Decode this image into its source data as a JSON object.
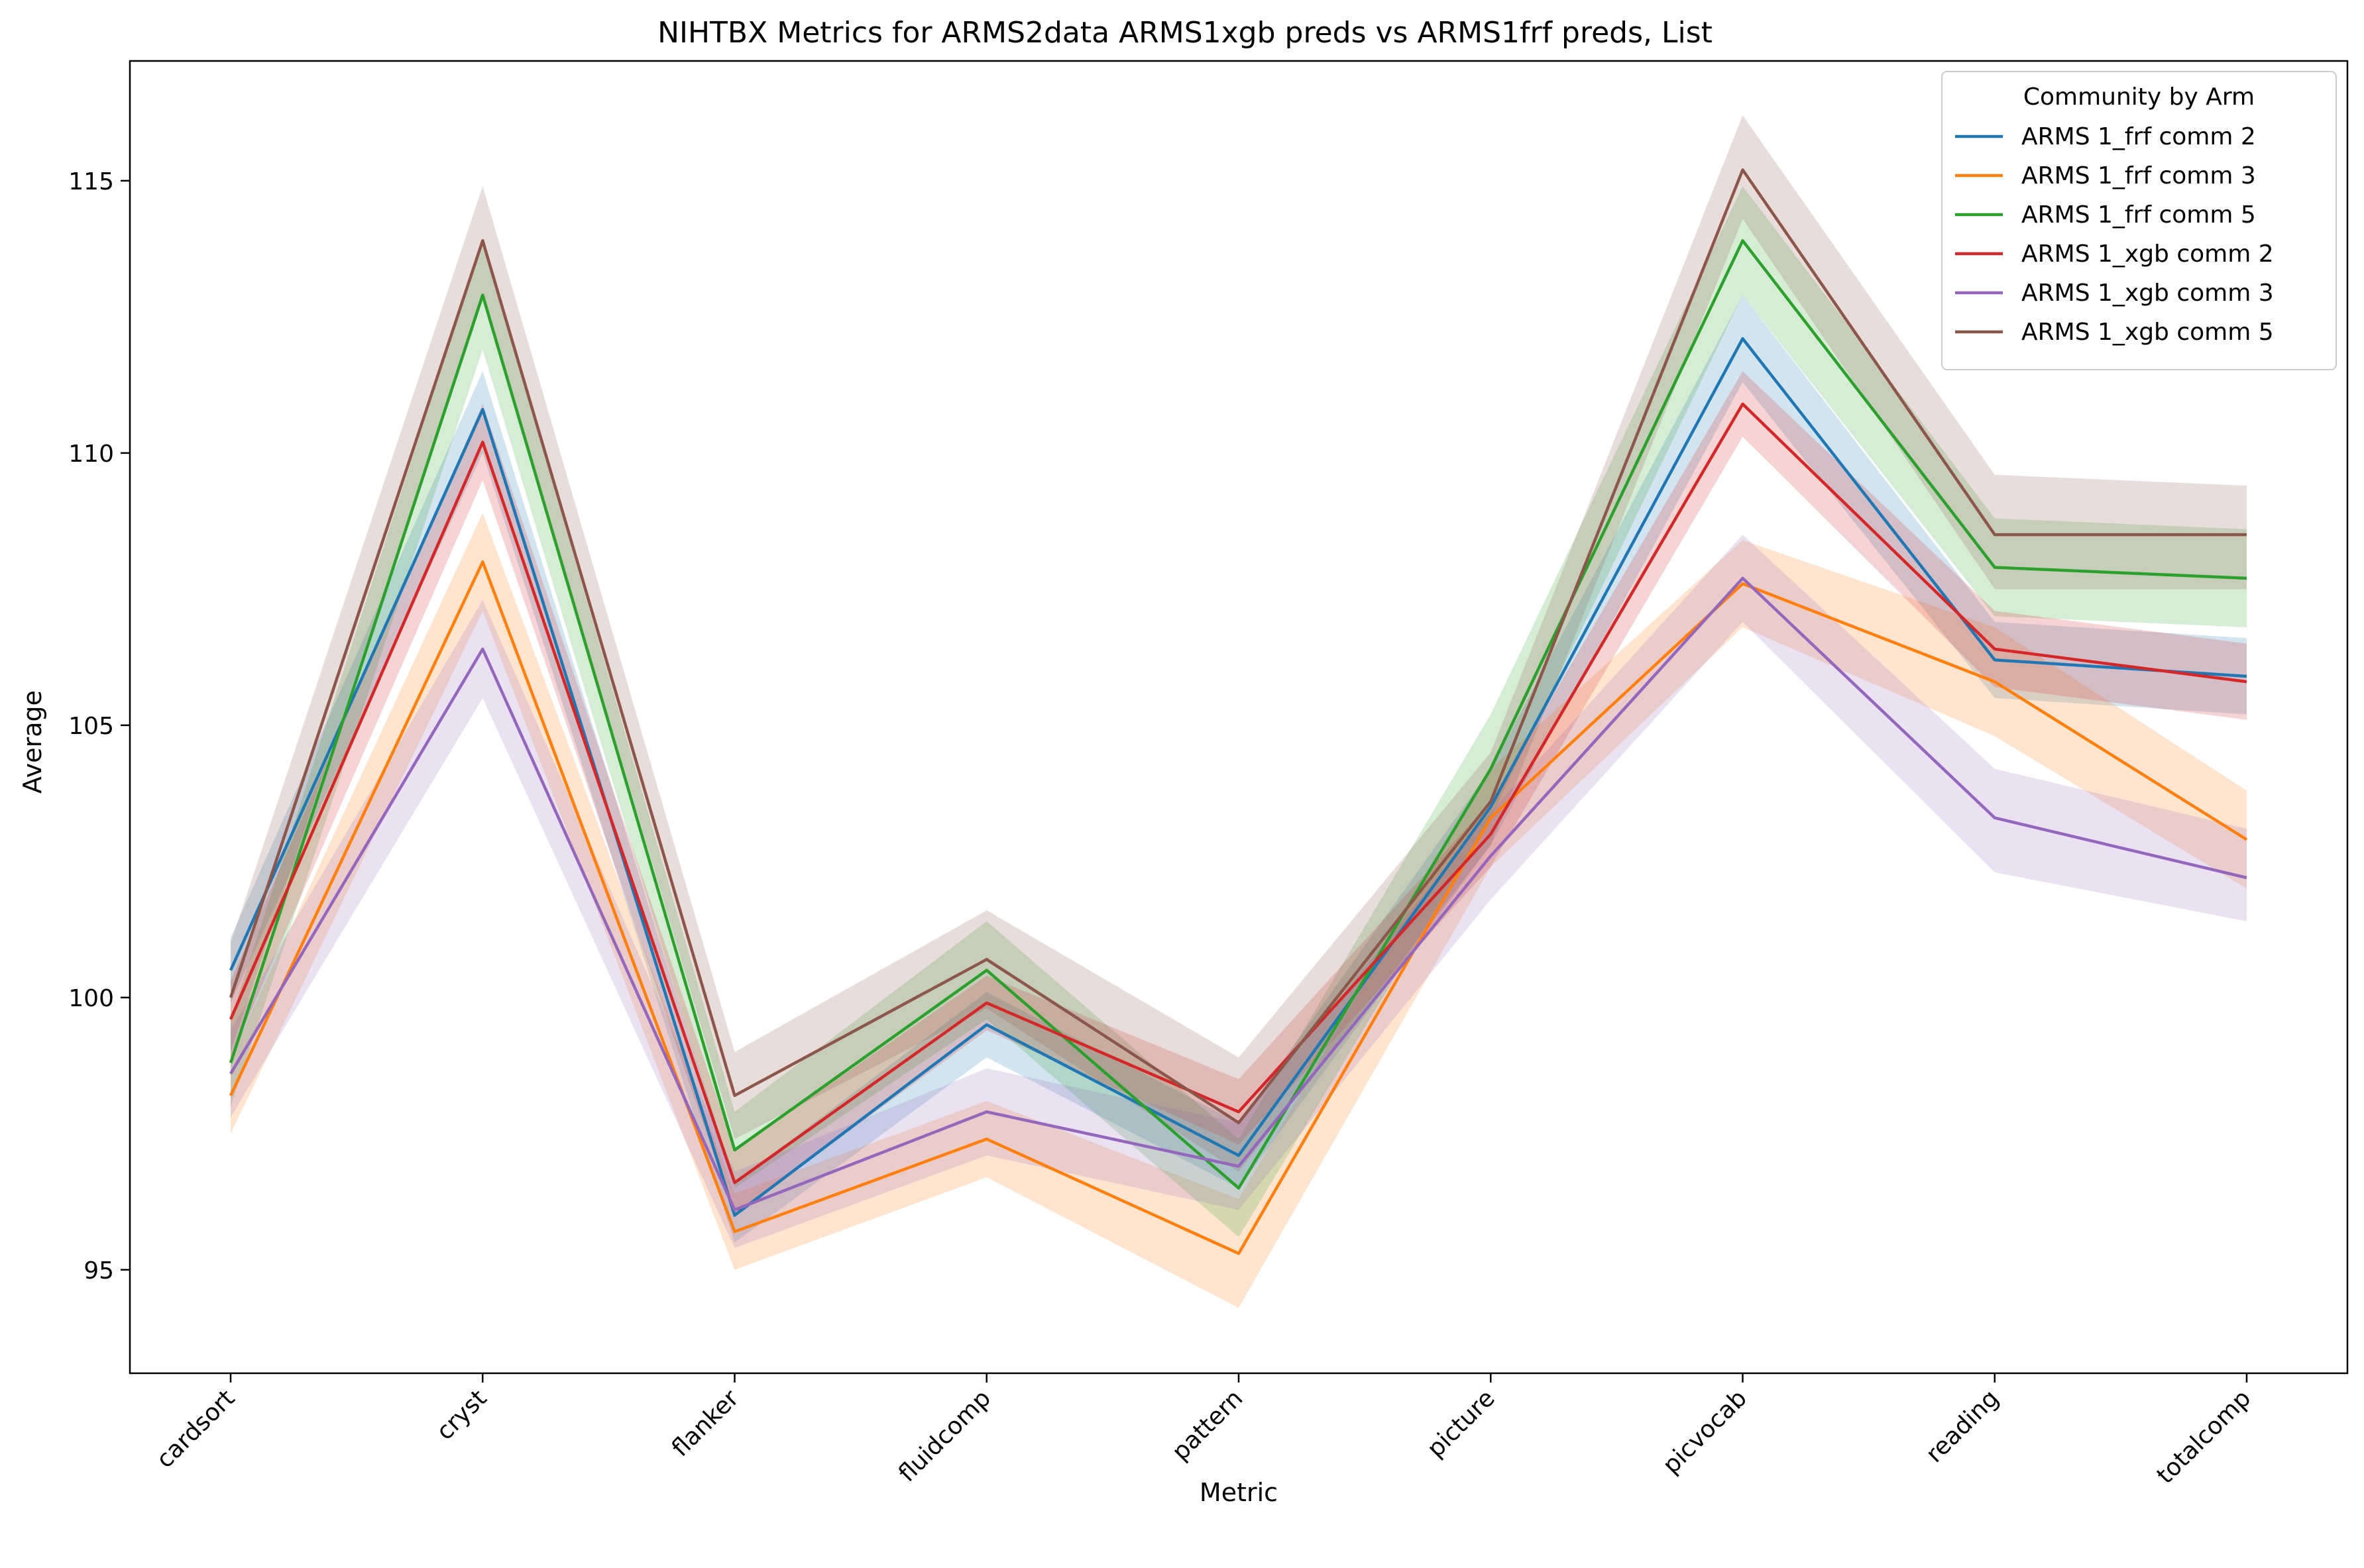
{
  "chart_data": {
    "type": "line",
    "title": "NIHTBX Metrics for ARMS2data ARMS1xgb preds vs ARMS1frf preds, List",
    "xlabel": "Metric",
    "ylabel": "Average",
    "categories": [
      "cardsort",
      "cryst",
      "flanker",
      "fluidcomp",
      "pattern",
      "picture",
      "picvocab",
      "reading",
      "totalcomp"
    ],
    "ylim": [
      93.1,
      117.2
    ],
    "yticks": [
      95,
      100,
      105,
      110,
      115
    ],
    "grid": false,
    "legend": {
      "title": "Community by Arm",
      "placement": "top-right"
    },
    "series": [
      {
        "name": "ARMS 1_frf comm 2",
        "color": "#1f77b4",
        "values": [
          100.5,
          110.8,
          96.0,
          99.5,
          97.1,
          103.5,
          112.1,
          106.2,
          105.9
        ],
        "lower": [
          99.9,
          110.0,
          95.5,
          98.9,
          96.5,
          102.8,
          111.3,
          105.5,
          105.2
        ],
        "upper": [
          101.1,
          111.5,
          96.6,
          100.1,
          97.7,
          104.2,
          112.9,
          106.9,
          106.6
        ]
      },
      {
        "name": "ARMS 1_frf comm 3",
        "color": "#ff7f0e",
        "values": [
          98.2,
          108.0,
          95.7,
          97.4,
          95.3,
          103.3,
          107.6,
          105.8,
          102.9
        ],
        "lower": [
          97.5,
          107.1,
          95.0,
          96.7,
          94.3,
          102.4,
          106.8,
          104.8,
          102.0
        ],
        "upper": [
          98.9,
          108.9,
          96.4,
          98.1,
          96.3,
          104.2,
          108.4,
          106.8,
          103.8
        ]
      },
      {
        "name": "ARMS 1_frf comm 5",
        "color": "#2ca02c",
        "values": [
          98.8,
          112.9,
          97.2,
          100.5,
          96.5,
          104.2,
          113.9,
          107.9,
          107.7
        ],
        "lower": [
          98.0,
          111.9,
          96.5,
          99.6,
          95.6,
          103.3,
          112.9,
          107.0,
          106.8
        ],
        "upper": [
          99.6,
          113.9,
          97.9,
          101.4,
          97.4,
          105.2,
          114.9,
          108.8,
          108.6
        ]
      },
      {
        "name": "ARMS 1_xgb comm 2",
        "color": "#d62728",
        "values": [
          99.6,
          110.2,
          96.6,
          99.9,
          97.9,
          103.0,
          110.9,
          106.4,
          105.8
        ],
        "lower": [
          98.9,
          109.5,
          96.0,
          99.4,
          97.3,
          102.4,
          110.3,
          105.7,
          105.1
        ],
        "upper": [
          100.3,
          110.9,
          97.2,
          100.4,
          98.5,
          103.6,
          111.5,
          107.1,
          106.5
        ]
      },
      {
        "name": "ARMS 1_xgb comm 3",
        "color": "#9467bd",
        "values": [
          98.6,
          106.4,
          96.1,
          97.9,
          96.9,
          102.6,
          107.7,
          103.3,
          102.2
        ],
        "lower": [
          97.8,
          105.5,
          95.4,
          97.1,
          96.1,
          101.8,
          106.9,
          102.3,
          101.4
        ],
        "upper": [
          99.4,
          107.3,
          96.8,
          98.7,
          97.7,
          103.4,
          108.5,
          104.2,
          103.1
        ]
      },
      {
        "name": "ARMS 1_xgb comm 5",
        "color": "#8c564b",
        "values": [
          100.0,
          113.9,
          98.2,
          100.7,
          97.7,
          103.6,
          115.2,
          108.5,
          108.5
        ],
        "lower": [
          99.0,
          112.9,
          97.4,
          99.8,
          96.8,
          102.8,
          114.3,
          107.5,
          107.5
        ],
        "upper": [
          101.0,
          114.9,
          99.0,
          101.6,
          98.9,
          104.5,
          116.2,
          109.6,
          109.4
        ]
      }
    ]
  }
}
